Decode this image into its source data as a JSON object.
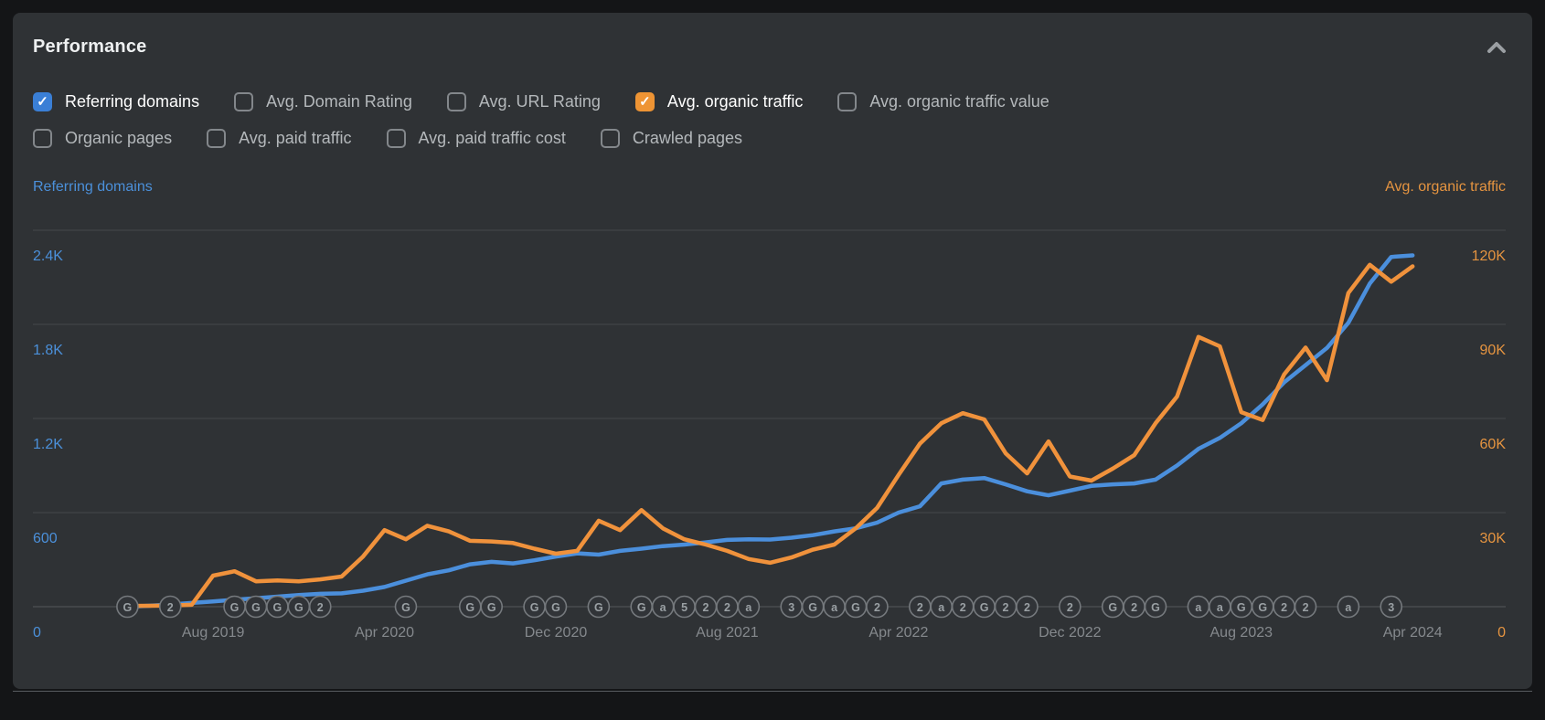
{
  "panel": {
    "title": "Performance",
    "collapse_icon": "chevron-up-icon"
  },
  "metrics": {
    "row1": [
      {
        "label": "Referring domains",
        "checked": true,
        "color": "#3a7fd6"
      },
      {
        "label": "Avg. Domain Rating",
        "checked": false,
        "color": null
      },
      {
        "label": "Avg. URL Rating",
        "checked": false,
        "color": null
      },
      {
        "label": "Avg. organic traffic",
        "checked": true,
        "color": "#ee9434"
      },
      {
        "label": "Avg. organic traffic value",
        "checked": false,
        "color": null
      }
    ],
    "row2": [
      {
        "label": "Organic pages",
        "checked": false,
        "color": null
      },
      {
        "label": "Avg. paid traffic",
        "checked": false,
        "color": null
      },
      {
        "label": "Avg. paid traffic cost",
        "checked": false,
        "color": null
      },
      {
        "label": "Crawled pages",
        "checked": false,
        "color": null
      }
    ],
    "check_glyph": "✓"
  },
  "chart_data": {
    "type": "line",
    "x_start": "Apr 2019",
    "x_end": "Apr 2024",
    "x_interval": "month",
    "grid": true,
    "left_axis": {
      "label": "Referring domains",
      "color": "#4b90da",
      "min": 0,
      "max": 2400,
      "ticks": [
        "2.4K",
        "1.8K",
        "1.2K",
        "600",
        "0"
      ]
    },
    "right_axis": {
      "label": "Avg. organic traffic",
      "color": "#e59440",
      "min": 0,
      "max": 120000,
      "ticks": [
        "120K",
        "90K",
        "60K",
        "30K",
        "0"
      ]
    },
    "x_ticks": [
      {
        "m": 4,
        "label": "Aug 2019"
      },
      {
        "m": 12,
        "label": "Apr 2020"
      },
      {
        "m": 20,
        "label": "Dec 2020"
      },
      {
        "m": 28,
        "label": "Aug 2021"
      },
      {
        "m": 36,
        "label": "Apr 2022"
      },
      {
        "m": 44,
        "label": "Dec 2022"
      },
      {
        "m": 52,
        "label": "Aug 2023"
      },
      {
        "m": 60,
        "label": "Apr 2024"
      }
    ],
    "series": [
      {
        "name": "Referring domains",
        "axis": "left",
        "color": "#4b8fdc",
        "values": [
          0,
          6,
          14,
          24,
          34,
          44,
          54,
          64,
          74,
          82,
          85,
          102,
          126,
          166,
          206,
          232,
          270,
          286,
          276,
          296,
          320,
          340,
          332,
          356,
          370,
          386,
          396,
          410,
          426,
          430,
          428,
          440,
          456,
          480,
          500,
          536,
          600,
          640,
          786,
          810,
          820,
          780,
          736,
          710,
          740,
          770,
          780,
          786,
          810,
          900,
          1006,
          1076,
          1170,
          1290,
          1430,
          1540,
          1650,
          1810,
          2060,
          2230,
          2240
        ]
      },
      {
        "name": "Avg. organic traffic",
        "axis": "right",
        "color": "#f0923c",
        "values": [
          250,
          300,
          350,
          600,
          9900,
          11300,
          8100,
          8400,
          8100,
          8700,
          9600,
          16000,
          24400,
          21500,
          25800,
          24000,
          21000,
          20800,
          20300,
          18500,
          16900,
          17800,
          27400,
          24400,
          30800,
          25000,
          21500,
          19800,
          17800,
          15200,
          14000,
          15700,
          18200,
          19800,
          25000,
          31500,
          42000,
          52000,
          58500,
          61700,
          59700,
          48900,
          42500,
          52700,
          41500,
          40200,
          44000,
          48300,
          58500,
          67000,
          86000,
          83000,
          62000,
          59500,
          74000,
          82600,
          72200,
          100000,
          109000,
          103600,
          108500
        ]
      }
    ],
    "markers": [
      {
        "m": 0,
        "label": "G"
      },
      {
        "m": 2,
        "label": "2"
      },
      {
        "m": 5,
        "label": "G"
      },
      {
        "m": 6,
        "label": "G"
      },
      {
        "m": 7,
        "label": "G"
      },
      {
        "m": 8,
        "label": "G"
      },
      {
        "m": 9,
        "label": "2"
      },
      {
        "m": 13,
        "label": "G"
      },
      {
        "m": 16,
        "label": "G"
      },
      {
        "m": 17,
        "label": "G"
      },
      {
        "m": 19,
        "label": "G"
      },
      {
        "m": 20,
        "label": "G"
      },
      {
        "m": 22,
        "label": "G"
      },
      {
        "m": 24,
        "label": "G"
      },
      {
        "m": 25,
        "label": "a"
      },
      {
        "m": 26,
        "label": "5"
      },
      {
        "m": 27,
        "label": "2"
      },
      {
        "m": 28,
        "label": "2"
      },
      {
        "m": 29,
        "label": "a"
      },
      {
        "m": 31,
        "label": "3"
      },
      {
        "m": 32,
        "label": "G"
      },
      {
        "m": 33,
        "label": "a"
      },
      {
        "m": 34,
        "label": "G"
      },
      {
        "m": 35,
        "label": "2"
      },
      {
        "m": 37,
        "label": "2"
      },
      {
        "m": 38,
        "label": "a"
      },
      {
        "m": 39,
        "label": "2"
      },
      {
        "m": 40,
        "label": "G"
      },
      {
        "m": 41,
        "label": "2"
      },
      {
        "m": 42,
        "label": "2"
      },
      {
        "m": 44,
        "label": "2"
      },
      {
        "m": 46,
        "label": "G"
      },
      {
        "m": 47,
        "label": "2"
      },
      {
        "m": 48,
        "label": "G"
      },
      {
        "m": 50,
        "label": "a"
      },
      {
        "m": 51,
        "label": "a"
      },
      {
        "m": 52,
        "label": "G"
      },
      {
        "m": 53,
        "label": "G"
      },
      {
        "m": 54,
        "label": "2"
      },
      {
        "m": 55,
        "label": "2"
      },
      {
        "m": 57,
        "label": "a"
      },
      {
        "m": 59,
        "label": "3"
      }
    ]
  }
}
